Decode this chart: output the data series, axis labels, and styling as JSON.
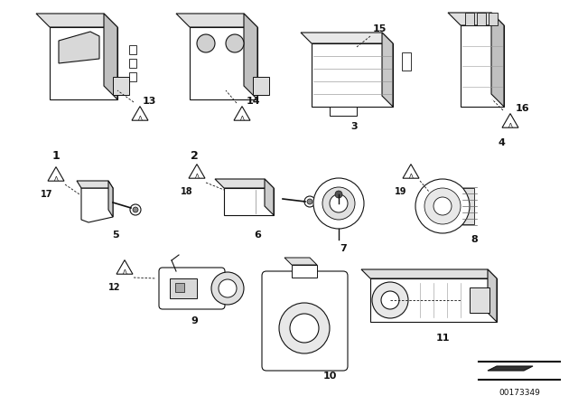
{
  "bg_color": "#ffffff",
  "diagram_id": "00173349",
  "line_color": "#111111",
  "lw": 0.8
}
